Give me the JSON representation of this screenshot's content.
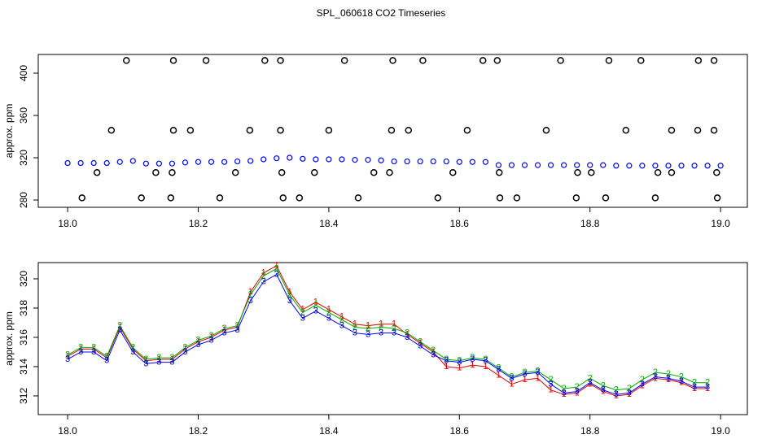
{
  "chart_data": [
    {
      "type": "scatter",
      "title": "SPL_060618  CO2 Timeseries",
      "ylabel": "approx. ppm",
      "xlim": [
        17.955,
        19.041
      ],
      "ylim": [
        273.1,
        417.7
      ],
      "xticks": [
        {
          "value": 18,
          "label": "18.0"
        },
        {
          "value": 18.2,
          "label": "18.2"
        },
        {
          "value": 18.4,
          "label": "18.4"
        },
        {
          "value": 18.6,
          "label": "18.6"
        },
        {
          "value": 18.8,
          "label": "18.8"
        },
        {
          "value": 19,
          "label": "19.0"
        }
      ],
      "yticks": [
        280,
        320,
        360,
        400
      ],
      "series": [
        {
          "color": "#0000ff",
          "x": [
            18.0,
            18.02,
            18.04,
            18.06,
            18.08,
            18.1,
            18.12,
            18.14,
            18.16,
            18.18,
            18.2,
            18.22,
            18.24,
            18.26,
            18.28,
            18.3,
            18.32,
            18.34,
            18.36,
            18.38,
            18.4,
            18.42,
            18.44,
            18.46,
            18.48,
            18.5,
            18.52,
            18.54,
            18.56,
            18.58,
            18.6,
            18.62,
            18.64,
            18.66,
            18.68,
            18.7,
            18.72,
            18.74,
            18.76,
            18.78,
            18.8,
            18.82,
            18.84,
            18.86,
            18.88,
            18.9,
            18.92,
            18.94,
            18.96,
            18.98,
            19.0
          ],
          "values": [
            315,
            315,
            315,
            315,
            316,
            317,
            314.5,
            314.5,
            314.5,
            315.5,
            316,
            316,
            316,
            316.5,
            317,
            318.5,
            319.5,
            320,
            319,
            318.5,
            318.5,
            318.5,
            318,
            318,
            317.5,
            316.5,
            316.5,
            316.5,
            316.5,
            316.5,
            316,
            316,
            316,
            313,
            313,
            313,
            313,
            313,
            313,
            313,
            313,
            313,
            312.5,
            312.5,
            312.5,
            312.5,
            312.5,
            312.5,
            312.5,
            312.5,
            312.5
          ]
        },
        {
          "color": "#000000",
          "x": [
            18.09,
            18.162,
            18.212,
            18.302,
            18.326,
            18.424,
            18.498,
            18.544,
            18.636,
            18.658,
            18.755,
            18.829,
            18.878,
            18.966,
            18.99,
            18.067,
            18.162,
            18.188,
            18.279,
            18.326,
            18.4,
            18.496,
            18.522,
            18.612,
            18.733,
            18.855,
            18.925,
            18.965,
            18.99,
            18.045,
            18.135,
            18.16,
            18.257,
            18.328,
            18.378,
            18.469,
            18.493,
            18.59,
            18.661,
            18.781,
            18.802,
            18.904,
            18.925,
            18.994,
            18.022,
            18.113,
            18.158,
            18.233,
            18.33,
            18.355,
            18.445,
            18.567,
            18.662,
            18.688,
            18.779,
            18.824,
            18.9,
            18.995
          ],
          "values": [
            412,
            412,
            412,
            412,
            412,
            412,
            412,
            412,
            412,
            412,
            412,
            412,
            412,
            412,
            412,
            346,
            346,
            346,
            346,
            346,
            346,
            346,
            346,
            346,
            346,
            346,
            346,
            346,
            346,
            306,
            306,
            306,
            306,
            306,
            306,
            306,
            306,
            306,
            306,
            306,
            306,
            306,
            306,
            306,
            282,
            282,
            282,
            282,
            282,
            282,
            282,
            282,
            282,
            282,
            282,
            282,
            282,
            282
          ]
        }
      ]
    },
    {
      "type": "line",
      "ylabel": "approx. ppm",
      "xlim": [
        17.955,
        19.041
      ],
      "ylim": [
        310.72,
        321.11
      ],
      "xticks": [
        {
          "value": 18,
          "label": "18.0"
        },
        {
          "value": 18.2,
          "label": "18.2"
        },
        {
          "value": 18.4,
          "label": "18.4"
        },
        {
          "value": 18.6,
          "label": "18.6"
        },
        {
          "value": 18.8,
          "label": "18.8"
        },
        {
          "value": 19,
          "label": "19.0"
        }
      ],
      "yticks": [
        312,
        314,
        316,
        318,
        320
      ],
      "x": [
        18.0,
        18.02,
        18.04,
        18.06,
        18.08,
        18.1,
        18.12,
        18.14,
        18.16,
        18.18,
        18.2,
        18.22,
        18.24,
        18.26,
        18.28,
        18.3,
        18.32,
        18.34,
        18.36,
        18.38,
        18.4,
        18.42,
        18.44,
        18.46,
        18.48,
        18.5,
        18.52,
        18.54,
        18.56,
        18.58,
        18.6,
        18.62,
        18.64,
        18.66,
        18.68,
        18.7,
        18.72,
        18.74,
        18.76,
        18.78,
        18.8,
        18.82,
        18.84,
        18.86,
        18.88,
        18.9,
        18.92,
        18.94,
        18.96,
        18.98
      ],
      "series": [
        {
          "name": "1",
          "color": "#dd0000",
          "values": [
            314.7,
            315.2,
            315.2,
            314.6,
            316.7,
            315.2,
            314.4,
            314.5,
            314.5,
            315.2,
            315.7,
            316.0,
            316.5,
            316.7,
            319.1,
            320.4,
            320.9,
            319.1,
            317.9,
            318.4,
            317.9,
            317.4,
            316.9,
            316.8,
            316.9,
            316.9,
            316.2,
            315.6,
            315.0,
            314.0,
            313.9,
            314.1,
            314.0,
            313.4,
            312.8,
            313.1,
            313.2,
            312.4,
            312.1,
            312.2,
            312.8,
            312.3,
            312.0,
            312.1,
            312.7,
            313.2,
            313.1,
            312.9,
            312.5,
            312.5
          ]
        },
        {
          "name": "2",
          "color": "#00aa00",
          "values": [
            314.8,
            315.3,
            315.3,
            314.7,
            316.8,
            315.3,
            314.5,
            314.6,
            314.6,
            315.3,
            315.8,
            316.1,
            316.6,
            316.8,
            318.9,
            320.2,
            320.7,
            318.9,
            317.7,
            318.2,
            317.7,
            317.2,
            316.7,
            316.6,
            316.7,
            316.6,
            316.3,
            315.7,
            315.1,
            314.5,
            314.4,
            314.6,
            314.5,
            313.9,
            313.3,
            313.6,
            313.7,
            313.1,
            312.5,
            312.6,
            313.2,
            312.7,
            312.4,
            312.5,
            313.1,
            313.6,
            313.5,
            313.3,
            312.9,
            312.9
          ]
        },
        {
          "name": "3",
          "color": "#0000ee",
          "values": [
            314.5,
            315.0,
            315.0,
            314.4,
            316.5,
            315.0,
            314.2,
            314.3,
            314.3,
            315.0,
            315.5,
            315.8,
            316.3,
            316.5,
            318.5,
            319.8,
            320.3,
            318.5,
            317.3,
            317.8,
            317.3,
            316.8,
            316.3,
            316.2,
            316.3,
            316.3,
            316.0,
            315.4,
            314.8,
            314.4,
            314.3,
            314.5,
            314.4,
            313.8,
            313.2,
            313.5,
            313.6,
            312.8,
            312.2,
            312.3,
            312.9,
            312.4,
            312.1,
            312.2,
            312.8,
            313.3,
            313.2,
            313.0,
            312.6,
            312.6
          ]
        }
      ]
    }
  ]
}
